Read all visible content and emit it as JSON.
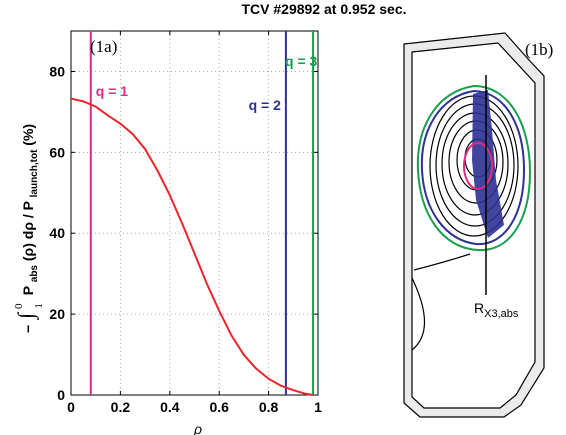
{
  "figure": {
    "title": "TCV  #29892  at  0.952  sec."
  },
  "chart_data": [
    {
      "type": "line",
      "panel_label": "(1a)",
      "xlabel": "ρ",
      "ylabel_parts": [
        "−",
        "∫",
        "0",
        "1",
        "P",
        "abs",
        "(ρ) dρ  /  P",
        "launch,tot",
        "   (%)"
      ],
      "xlim": [
        0,
        1
      ],
      "ylim": [
        0,
        90
      ],
      "xticks": [
        "0",
        "0.2",
        "0.4",
        "0.6",
        "0.8",
        "1"
      ],
      "xtick_values": [
        0,
        0.2,
        0.4,
        0.6,
        0.8,
        1
      ],
      "yticks": [
        "0",
        "20",
        "40",
        "60",
        "80"
      ],
      "ytick_values": [
        0,
        20,
        40,
        60,
        80
      ],
      "grid": true,
      "series": [
        {
          "color": "#e8262b",
          "x": [
            0,
            0.05,
            0.1,
            0.15,
            0.2,
            0.25,
            0.3,
            0.35,
            0.4,
            0.45,
            0.5,
            0.55,
            0.6,
            0.65,
            0.7,
            0.75,
            0.8,
            0.85,
            0.9,
            0.95,
            0.98
          ],
          "y": [
            73.3,
            72.6,
            71.3,
            69.1,
            67.1,
            64.5,
            60.8,
            55.5,
            49.4,
            42.4,
            35.0,
            27.5,
            20.8,
            14.7,
            9.9,
            6.5,
            4.0,
            2.3,
            1.2,
            0.3,
            0
          ]
        }
      ],
      "vlines": [
        {
          "x": 0.08,
          "label": "q = 1",
          "color": "#e0297f"
        },
        {
          "x": 0.87,
          "label": "q = 2",
          "color": "#2e3192"
        },
        {
          "x": 0.98,
          "label": "q = 3",
          "color": "#16a04b"
        }
      ]
    },
    {
      "type": "diagram",
      "panel_label": "(1b)",
      "annotation_main": "R",
      "annotation_sub": "X3,abs",
      "colors": {
        "vessel": "#000000",
        "wall_fill": "#ebebeb",
        "lcfs_green": "#16a04b",
        "lcfs_blue": "#2e3192",
        "q1_magenta": "#e0297f",
        "absorption": "#2e3192"
      }
    }
  ]
}
